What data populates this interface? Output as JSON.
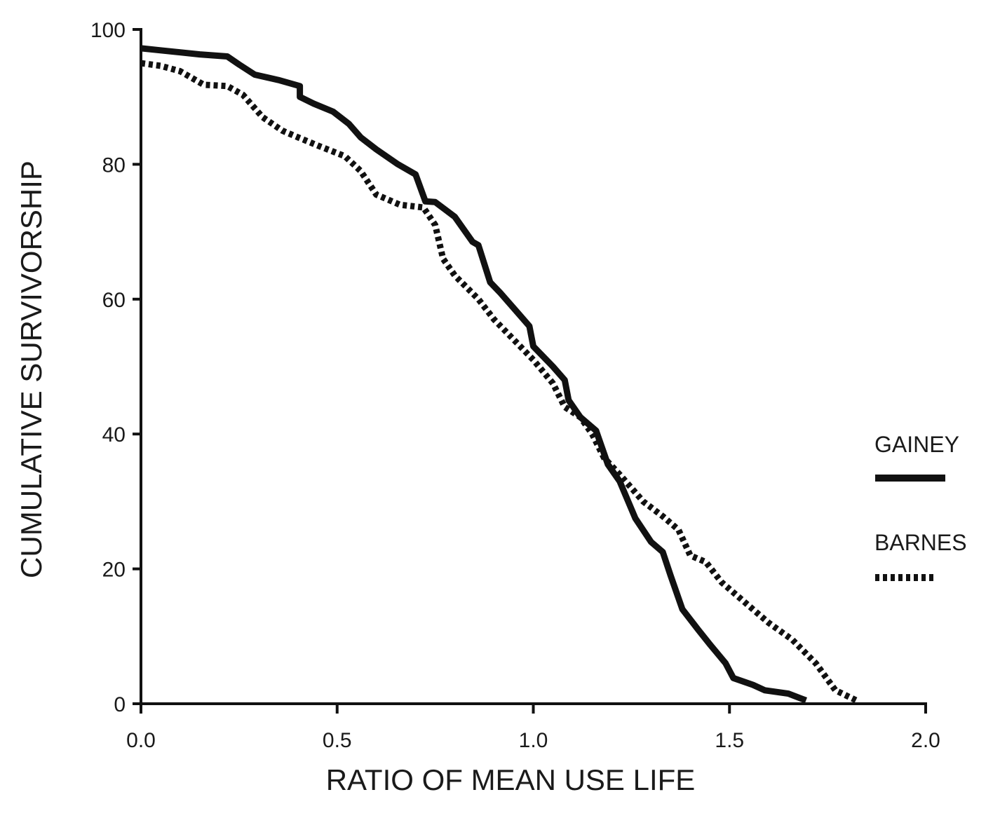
{
  "chart_data": {
    "type": "line",
    "title": "",
    "xlabel": "RATIO OF MEAN USE LIFE",
    "ylabel": "CUMULATIVE SURVIVORSHIP",
    "xlim": [
      0.0,
      2.0
    ],
    "ylim": [
      0,
      100
    ],
    "x_ticks": [
      0.0,
      0.5,
      1.0,
      1.5,
      2.0
    ],
    "x_tick_labels": [
      "0.0",
      "0.5",
      "1.0",
      "1.5",
      "2.0"
    ],
    "y_ticks": [
      0,
      20,
      40,
      60,
      80,
      100
    ],
    "y_tick_labels": [
      "0",
      "20",
      "40",
      "60",
      "80",
      "100"
    ],
    "grid": false,
    "legend_position": "right",
    "series": [
      {
        "name": "GAINEY",
        "style": "solid",
        "color": "#111111",
        "points": [
          [
            0.0,
            97.2
          ],
          [
            0.05,
            96.9
          ],
          [
            0.1,
            96.6
          ],
          [
            0.15,
            96.3
          ],
          [
            0.22,
            96.0
          ],
          [
            0.25,
            94.8
          ],
          [
            0.29,
            93.3
          ],
          [
            0.35,
            92.5
          ],
          [
            0.405,
            91.6
          ],
          [
            0.405,
            90.0
          ],
          [
            0.44,
            89.0
          ],
          [
            0.49,
            87.8
          ],
          [
            0.53,
            86.0
          ],
          [
            0.56,
            84.0
          ],
          [
            0.6,
            82.2
          ],
          [
            0.655,
            80.0
          ],
          [
            0.7,
            78.5
          ],
          [
            0.725,
            74.5
          ],
          [
            0.75,
            74.4
          ],
          [
            0.8,
            72.2
          ],
          [
            0.845,
            68.5
          ],
          [
            0.86,
            68.0
          ],
          [
            0.89,
            62.5
          ],
          [
            0.915,
            61.0
          ],
          [
            0.96,
            58.0
          ],
          [
            0.99,
            56.0
          ],
          [
            1.0,
            53.0
          ],
          [
            1.05,
            50.0
          ],
          [
            1.08,
            48.0
          ],
          [
            1.09,
            45.0
          ],
          [
            1.12,
            42.5
          ],
          [
            1.16,
            40.5
          ],
          [
            1.19,
            35.5
          ],
          [
            1.22,
            33.0
          ],
          [
            1.26,
            27.5
          ],
          [
            1.3,
            24.0
          ],
          [
            1.33,
            22.5
          ],
          [
            1.35,
            19.0
          ],
          [
            1.38,
            14.0
          ],
          [
            1.42,
            11.0
          ],
          [
            1.45,
            8.8
          ],
          [
            1.49,
            6.0
          ],
          [
            1.51,
            3.8
          ],
          [
            1.56,
            2.8
          ],
          [
            1.59,
            2.0
          ],
          [
            1.65,
            1.5
          ],
          [
            1.695,
            0.5
          ]
        ]
      },
      {
        "name": "BARNES",
        "style": "dotted",
        "color": "#111111",
        "points": [
          [
            0.0,
            95.0
          ],
          [
            0.05,
            94.6
          ],
          [
            0.1,
            93.8
          ],
          [
            0.16,
            91.8
          ],
          [
            0.22,
            91.6
          ],
          [
            0.26,
            90.3
          ],
          [
            0.31,
            87.0
          ],
          [
            0.36,
            85.0
          ],
          [
            0.4,
            84.0
          ],
          [
            0.45,
            82.8
          ],
          [
            0.52,
            81.2
          ],
          [
            0.56,
            79.0
          ],
          [
            0.6,
            75.5
          ],
          [
            0.66,
            74.0
          ],
          [
            0.72,
            73.6
          ],
          [
            0.75,
            71.0
          ],
          [
            0.77,
            66.0
          ],
          [
            0.8,
            63.5
          ],
          [
            0.86,
            60.0
          ],
          [
            0.9,
            57.0
          ],
          [
            0.95,
            54.0
          ],
          [
            1.0,
            51.0
          ],
          [
            1.05,
            47.5
          ],
          [
            1.08,
            44.0
          ],
          [
            1.12,
            42.5
          ],
          [
            1.15,
            40.0
          ],
          [
            1.18,
            36.5
          ],
          [
            1.22,
            34.0
          ],
          [
            1.28,
            30.0
          ],
          [
            1.33,
            27.8
          ],
          [
            1.37,
            25.8
          ],
          [
            1.4,
            22.0
          ],
          [
            1.44,
            21.0
          ],
          [
            1.48,
            18.0
          ],
          [
            1.53,
            15.5
          ],
          [
            1.6,
            12.0
          ],
          [
            1.66,
            9.5
          ],
          [
            1.72,
            6.0
          ],
          [
            1.77,
            2.0
          ],
          [
            1.83,
            0.3
          ]
        ]
      }
    ]
  }
}
